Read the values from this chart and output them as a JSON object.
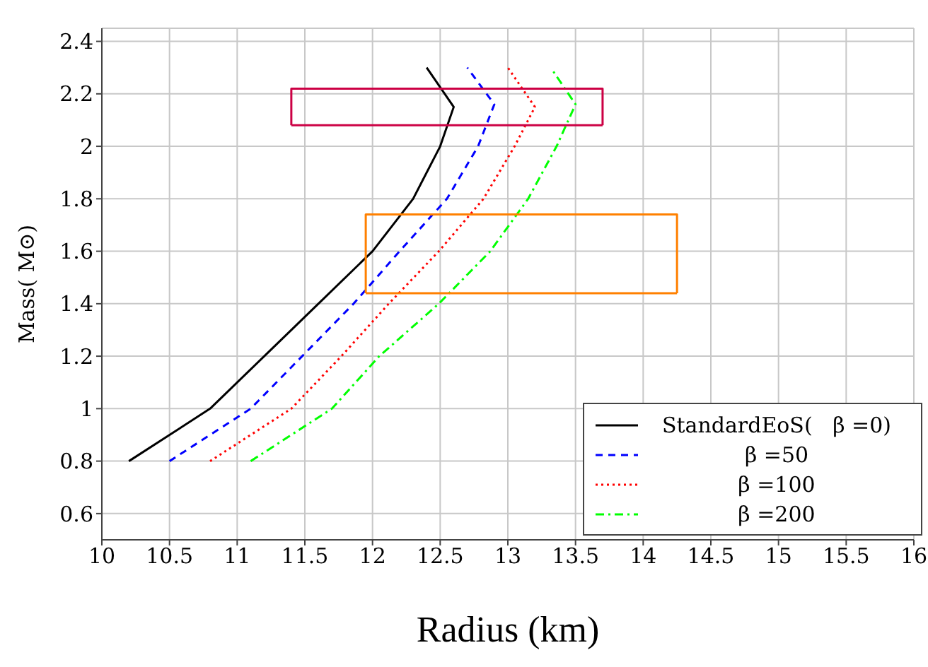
{
  "chart_data": {
    "type": "line",
    "xlabel": "Radius (km)",
    "ylabel": "Mass( M⊙)",
    "xlim": [
      10,
      16
    ],
    "xticks": [
      10,
      10.5,
      11,
      11.5,
      12,
      12.5,
      13,
      13.5,
      14,
      14.5,
      15,
      15.5,
      16
    ],
    "ylim": [
      0.5,
      2.45
    ],
    "yticks": [
      0.6,
      0.8,
      1,
      1.2,
      1.4,
      1.6,
      1.8,
      2,
      2.2,
      2.4
    ],
    "grid": true,
    "legend": "bottom right",
    "marker": "none",
    "series": [
      {
        "name": "StandardEoS(   β =0)",
        "color": "#000000",
        "line_style": "solid",
        "x": [
          10.2,
          10.8,
          11.2,
          11.6,
          12.0,
          12.3,
          12.5,
          12.6,
          12.4
        ],
        "values": [
          0.8,
          1.0,
          1.2,
          1.4,
          1.6,
          1.8,
          2.0,
          2.15,
          2.3
        ]
      },
      {
        "name": "β =50",
        "color": "#0000ff",
        "line_style": "dashed",
        "x": [
          10.5,
          11.1,
          11.48,
          11.86,
          12.2,
          12.55,
          12.78,
          12.9,
          12.7
        ],
        "values": [
          0.8,
          1.0,
          1.2,
          1.4,
          1.6,
          1.8,
          2.0,
          2.16,
          2.3
        ]
      },
      {
        "name": "β =100",
        "color": "#ff0000",
        "line_style": "dotted",
        "x": [
          10.8,
          11.4,
          11.77,
          12.12,
          12.49,
          12.82,
          13.05,
          13.2,
          13.0
        ],
        "values": [
          0.8,
          1.0,
          1.2,
          1.4,
          1.6,
          1.8,
          2.0,
          2.15,
          2.3
        ]
      },
      {
        "name": "β =200",
        "color": "#00ff00",
        "line_style": "dashdot",
        "x": [
          11.1,
          11.7,
          12.05,
          12.49,
          12.87,
          13.15,
          13.36,
          13.5,
          13.33
        ],
        "values": [
          0.8,
          1.0,
          1.2,
          1.4,
          1.6,
          1.8,
          2.0,
          2.16,
          2.29
        ]
      },
      {
        "type": "line",
        "color": "#cc0044",
        "line_style": "solid",
        "x": [
          11.4,
          11.4,
          13.7,
          13.7
        ],
        "values": [
          2.08,
          2.22,
          2.22,
          2.08
        ]
      },
      {
        "type": "line",
        "color": "#cc0044",
        "line_style": "solid",
        "x": [
          11.4,
          13.7
        ],
        "values": [
          2.08,
          2.08
        ]
      },
      {
        "type": "line",
        "color": "#ff8000",
        "line_style": "solid",
        "x": [
          11.95,
          11.95,
          14.25,
          14.25
        ],
        "values": [
          1.44,
          1.74,
          1.74,
          1.44
        ]
      },
      {
        "type": "line",
        "color": "#ff8000",
        "line_style": "solid",
        "x": [
          11.95,
          14.25
        ],
        "values": [
          1.44,
          1.44
        ]
      }
    ]
  }
}
